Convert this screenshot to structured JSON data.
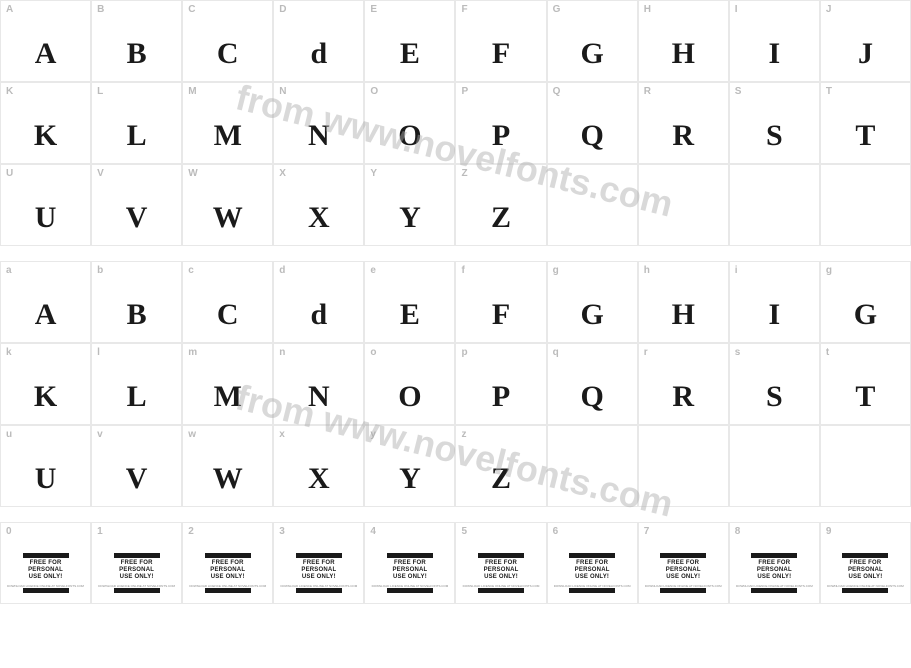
{
  "watermark_text": "from www.novelfonts.com",
  "colors": {
    "background": "#ffffff",
    "border": "#e8e8e8",
    "label": "#bbbbbb",
    "glyph": "#1a1a1a",
    "watermark": "rgba(170,170,170,0.45)"
  },
  "upper_row1": [
    {
      "label": "A",
      "glyph": "A"
    },
    {
      "label": "B",
      "glyph": "B"
    },
    {
      "label": "C",
      "glyph": "C"
    },
    {
      "label": "D",
      "glyph": "d"
    },
    {
      "label": "E",
      "glyph": "E"
    },
    {
      "label": "F",
      "glyph": "F"
    },
    {
      "label": "G",
      "glyph": "G"
    },
    {
      "label": "H",
      "glyph": "H"
    },
    {
      "label": "I",
      "glyph": "I"
    },
    {
      "label": "J",
      "glyph": "J"
    }
  ],
  "upper_row2": [
    {
      "label": "K",
      "glyph": "K"
    },
    {
      "label": "L",
      "glyph": "L"
    },
    {
      "label": "M",
      "glyph": "M"
    },
    {
      "label": "N",
      "glyph": "N"
    },
    {
      "label": "O",
      "glyph": "O"
    },
    {
      "label": "P",
      "glyph": "P"
    },
    {
      "label": "Q",
      "glyph": "Q"
    },
    {
      "label": "R",
      "glyph": "R"
    },
    {
      "label": "S",
      "glyph": "S"
    },
    {
      "label": "T",
      "glyph": "T"
    }
  ],
  "upper_row3": [
    {
      "label": "U",
      "glyph": "U"
    },
    {
      "label": "V",
      "glyph": "V"
    },
    {
      "label": "W",
      "glyph": "W"
    },
    {
      "label": "X",
      "glyph": "X"
    },
    {
      "label": "Y",
      "glyph": "Y"
    },
    {
      "label": "Z",
      "glyph": "Z"
    },
    {
      "label": "",
      "glyph": ""
    },
    {
      "label": "",
      "glyph": ""
    },
    {
      "label": "",
      "glyph": ""
    },
    {
      "label": "",
      "glyph": ""
    }
  ],
  "lower_row1": [
    {
      "label": "a",
      "glyph": "A"
    },
    {
      "label": "b",
      "glyph": "B"
    },
    {
      "label": "c",
      "glyph": "C"
    },
    {
      "label": "d",
      "glyph": "d"
    },
    {
      "label": "e",
      "glyph": "E"
    },
    {
      "label": "f",
      "glyph": "F"
    },
    {
      "label": "g",
      "glyph": "G"
    },
    {
      "label": "h",
      "glyph": "H"
    },
    {
      "label": "i",
      "glyph": "I"
    },
    {
      "label": "g",
      "glyph": "G"
    }
  ],
  "lower_row2": [
    {
      "label": "k",
      "glyph": "K"
    },
    {
      "label": "l",
      "glyph": "L"
    },
    {
      "label": "m",
      "glyph": "M"
    },
    {
      "label": "n",
      "glyph": "N"
    },
    {
      "label": "o",
      "glyph": "O"
    },
    {
      "label": "p",
      "glyph": "P"
    },
    {
      "label": "q",
      "glyph": "Q"
    },
    {
      "label": "r",
      "glyph": "R"
    },
    {
      "label": "s",
      "glyph": "S"
    },
    {
      "label": "t",
      "glyph": "T"
    }
  ],
  "lower_row3": [
    {
      "label": "u",
      "glyph": "U"
    },
    {
      "label": "v",
      "glyph": "V"
    },
    {
      "label": "w",
      "glyph": "W"
    },
    {
      "label": "x",
      "glyph": "X"
    },
    {
      "label": "y",
      "glyph": "Y"
    },
    {
      "label": "z",
      "glyph": "Z"
    },
    {
      "label": "",
      "glyph": ""
    },
    {
      "label": "",
      "glyph": ""
    },
    {
      "label": "",
      "glyph": ""
    },
    {
      "label": "",
      "glyph": ""
    }
  ],
  "digits_row": [
    {
      "label": "0"
    },
    {
      "label": "1"
    },
    {
      "label": "2"
    },
    {
      "label": "3"
    },
    {
      "label": "4"
    },
    {
      "label": "5"
    },
    {
      "label": "6"
    },
    {
      "label": "7"
    },
    {
      "label": "8"
    },
    {
      "label": "9"
    }
  ],
  "free_text_line1": "FREE FOR",
  "free_text_line2": "PERSONAL",
  "free_text_line3": "USE ONLY!",
  "free_sub": "DOWNLOAD LICENCE ONLINE AT NOVELFONTS.COM"
}
